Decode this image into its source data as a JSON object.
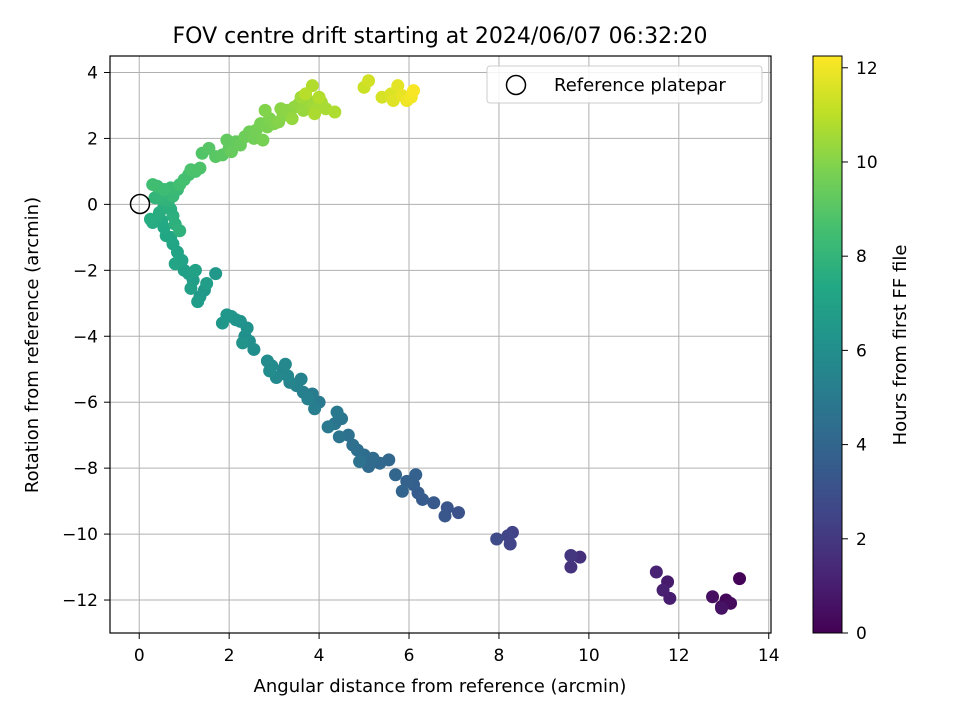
{
  "chart_data": {
    "type": "scatter",
    "title": "FOV centre drift starting at 2024/06/07 06:32:20",
    "xlabel": "Angular distance from reference (arcmin)",
    "ylabel": "Rotation from reference (arcmin)",
    "xlim": [
      -0.65,
      14.05
    ],
    "ylim": [
      -13.0,
      4.5
    ],
    "xticks": [
      0,
      2,
      4,
      6,
      8,
      10,
      12,
      14
    ],
    "yticks": [
      -12,
      -10,
      -8,
      -6,
      -4,
      -2,
      0,
      2,
      4
    ],
    "grid": true,
    "legend": {
      "position": "upper right",
      "entries": [
        "Reference platepar"
      ]
    },
    "reference_point": {
      "x": 0,
      "y": 0,
      "label": "Reference platepar"
    },
    "colorbar": {
      "label": "Hours from first FF file",
      "range": [
        0,
        12.25
      ],
      "ticks": [
        0,
        2,
        4,
        6,
        8,
        10,
        12
      ],
      "colormap": "viridis"
    },
    "series": [
      {
        "points": [
          [
            13.35,
            -11.35,
            0.1
          ],
          [
            13.05,
            -12.0,
            0.2
          ],
          [
            12.95,
            -12.2,
            0.3
          ],
          [
            13.15,
            -12.1,
            0.35
          ],
          [
            12.75,
            -11.9,
            0.5
          ],
          [
            12.95,
            -12.25,
            0.6
          ],
          [
            11.75,
            -11.45,
            0.9
          ],
          [
            11.8,
            -11.95,
            1.0
          ],
          [
            11.65,
            -11.7,
            1.1
          ],
          [
            11.5,
            -11.15,
            1.2
          ],
          [
            9.8,
            -10.7,
            1.7
          ],
          [
            9.6,
            -11.0,
            1.8
          ],
          [
            9.6,
            -10.65,
            1.9
          ],
          [
            8.3,
            -9.95,
            2.4
          ],
          [
            8.25,
            -10.3,
            2.5
          ],
          [
            8.2,
            -10.05,
            2.55
          ],
          [
            7.95,
            -10.15,
            2.7
          ],
          [
            7.1,
            -9.35,
            3.1
          ],
          [
            6.85,
            -9.2,
            3.2
          ],
          [
            6.8,
            -9.45,
            3.3
          ],
          [
            6.55,
            -9.05,
            3.4
          ],
          [
            6.3,
            -8.95,
            3.5
          ],
          [
            6.2,
            -8.75,
            3.6
          ],
          [
            6.1,
            -8.5,
            3.7
          ],
          [
            6.15,
            -8.2,
            3.75
          ],
          [
            5.95,
            -8.4,
            3.8
          ],
          [
            5.85,
            -8.7,
            3.9
          ],
          [
            5.7,
            -8.2,
            4.0
          ],
          [
            5.55,
            -7.75,
            4.05
          ],
          [
            5.35,
            -7.85,
            4.1
          ],
          [
            5.2,
            -7.7,
            4.2
          ],
          [
            5.1,
            -7.95,
            4.25
          ],
          [
            5.0,
            -7.6,
            4.35
          ],
          [
            4.85,
            -7.45,
            4.4
          ],
          [
            4.75,
            -7.3,
            4.5
          ],
          [
            4.65,
            -7.0,
            4.55
          ],
          [
            4.9,
            -7.8,
            4.6
          ],
          [
            4.45,
            -7.05,
            4.7
          ],
          [
            4.5,
            -6.5,
            4.75
          ],
          [
            4.35,
            -6.65,
            4.8
          ],
          [
            4.4,
            -6.3,
            4.9
          ],
          [
            4.2,
            -6.75,
            4.95
          ],
          [
            4.0,
            -6.0,
            5.0
          ],
          [
            3.85,
            -5.75,
            5.1
          ],
          [
            3.9,
            -6.2,
            5.15
          ],
          [
            3.65,
            -5.7,
            5.25
          ],
          [
            3.75,
            -5.9,
            5.3
          ],
          [
            3.5,
            -5.5,
            5.4
          ],
          [
            3.6,
            -5.3,
            5.45
          ],
          [
            3.35,
            -5.4,
            5.5
          ],
          [
            3.2,
            -5.0,
            5.6
          ],
          [
            3.3,
            -5.2,
            5.65
          ],
          [
            3.25,
            -4.85,
            5.7
          ],
          [
            3.05,
            -5.25,
            5.75
          ],
          [
            2.95,
            -4.9,
            5.8
          ],
          [
            2.85,
            -4.75,
            5.9
          ],
          [
            2.9,
            -5.05,
            5.95
          ],
          [
            2.55,
            -4.4,
            6.0
          ],
          [
            2.45,
            -4.15,
            6.05
          ],
          [
            2.35,
            -4.0,
            6.1
          ],
          [
            2.4,
            -3.75,
            6.15
          ],
          [
            2.25,
            -3.55,
            6.2
          ],
          [
            2.3,
            -4.2,
            6.25
          ],
          [
            2.15,
            -3.5,
            6.3
          ],
          [
            2.05,
            -3.4,
            6.35
          ],
          [
            1.95,
            -3.35,
            6.4
          ],
          [
            1.85,
            -3.6,
            6.45
          ],
          [
            1.7,
            -2.1,
            6.5
          ],
          [
            1.45,
            -2.6,
            6.55
          ],
          [
            1.35,
            -2.8,
            6.6
          ],
          [
            1.3,
            -2.95,
            6.7
          ],
          [
            1.5,
            -2.4,
            6.75
          ],
          [
            1.2,
            -2.3,
            6.8
          ],
          [
            1.15,
            -2.55,
            6.85
          ],
          [
            1.1,
            -2.1,
            6.9
          ],
          [
            1.0,
            -2.0,
            6.95
          ],
          [
            1.25,
            -2.0,
            7.0
          ],
          [
            0.95,
            -1.7,
            7.05
          ],
          [
            0.85,
            -1.45,
            7.1
          ],
          [
            0.8,
            -1.8,
            7.15
          ],
          [
            0.75,
            -1.2,
            7.2
          ],
          [
            0.7,
            -1.0,
            7.25
          ],
          [
            0.6,
            -0.95,
            7.3
          ],
          [
            0.55,
            -0.7,
            7.35
          ],
          [
            0.5,
            -0.5,
            7.4
          ],
          [
            0.4,
            -0.45,
            7.45
          ],
          [
            0.3,
            -0.55,
            7.5
          ],
          [
            0.25,
            -0.45,
            7.55
          ],
          [
            0.45,
            -0.25,
            7.6
          ],
          [
            0.55,
            -0.05,
            7.65
          ],
          [
            0.7,
            -0.15,
            7.7
          ],
          [
            0.75,
            -0.35,
            7.75
          ],
          [
            0.8,
            -0.6,
            7.8
          ],
          [
            0.9,
            -0.8,
            7.85
          ],
          [
            0.65,
            0.1,
            7.9
          ],
          [
            0.5,
            0.15,
            7.95
          ],
          [
            0.35,
            0.2,
            8.0
          ],
          [
            0.45,
            0.3,
            8.05
          ],
          [
            0.6,
            0.35,
            8.1
          ],
          [
            0.75,
            0.25,
            8.15
          ],
          [
            0.85,
            0.45,
            8.2
          ],
          [
            0.7,
            0.5,
            8.3
          ],
          [
            0.55,
            0.45,
            8.35
          ],
          [
            0.4,
            0.55,
            8.4
          ],
          [
            0.3,
            0.6,
            8.45
          ],
          [
            0.9,
            0.6,
            8.5
          ],
          [
            1.0,
            0.75,
            8.55
          ],
          [
            1.1,
            0.9,
            8.6
          ],
          [
            1.25,
            1.0,
            8.7
          ],
          [
            1.15,
            1.05,
            8.75
          ],
          [
            1.35,
            1.1,
            8.8
          ],
          [
            1.4,
            1.55,
            8.9
          ],
          [
            1.55,
            1.7,
            9.0
          ],
          [
            1.7,
            1.45,
            9.05
          ],
          [
            1.85,
            1.5,
            9.1
          ],
          [
            2.0,
            1.7,
            9.2
          ],
          [
            1.95,
            1.95,
            9.25
          ],
          [
            2.15,
            1.9,
            9.3
          ],
          [
            2.05,
            1.6,
            9.35
          ],
          [
            2.25,
            1.8,
            9.4
          ],
          [
            2.35,
            2.05,
            9.5
          ],
          [
            2.45,
            2.2,
            9.55
          ],
          [
            2.55,
            2.0,
            9.6
          ],
          [
            2.6,
            2.25,
            9.65
          ],
          [
            2.75,
            1.95,
            9.7
          ],
          [
            2.7,
            2.45,
            9.75
          ],
          [
            2.85,
            2.35,
            9.8
          ],
          [
            2.9,
            2.6,
            9.85
          ],
          [
            3.0,
            2.45,
            9.9
          ],
          [
            2.8,
            2.85,
            9.95
          ],
          [
            3.1,
            2.5,
            10.0
          ],
          [
            3.2,
            2.7,
            10.05
          ],
          [
            3.15,
            2.9,
            10.1
          ],
          [
            3.3,
            2.85,
            10.15
          ],
          [
            3.45,
            2.95,
            10.2
          ],
          [
            3.55,
            3.05,
            10.25
          ],
          [
            3.4,
            2.6,
            10.3
          ],
          [
            3.65,
            2.85,
            10.35
          ],
          [
            3.75,
            3.15,
            10.4
          ],
          [
            3.85,
            3.0,
            10.45
          ],
          [
            3.6,
            3.25,
            10.5
          ],
          [
            3.95,
            2.95,
            10.55
          ],
          [
            4.05,
            3.1,
            10.6
          ],
          [
            4.15,
            2.9,
            10.65
          ],
          [
            3.9,
            2.75,
            10.7
          ],
          [
            4.35,
            2.8,
            10.75
          ],
          [
            3.85,
            3.6,
            10.8
          ],
          [
            4.0,
            3.25,
            10.85
          ],
          [
            3.7,
            3.35,
            10.9
          ],
          [
            5.0,
            3.55,
            11.3
          ],
          [
            5.1,
            3.75,
            11.4
          ],
          [
            5.4,
            3.25,
            11.5
          ],
          [
            5.6,
            3.35,
            11.6
          ],
          [
            5.65,
            3.15,
            11.7
          ],
          [
            5.75,
            3.6,
            11.75
          ],
          [
            5.85,
            3.3,
            11.85
          ],
          [
            5.95,
            3.15,
            11.95
          ],
          [
            6.05,
            3.25,
            12.05
          ],
          [
            6.1,
            3.45,
            12.15
          ]
        ]
      }
    ]
  }
}
